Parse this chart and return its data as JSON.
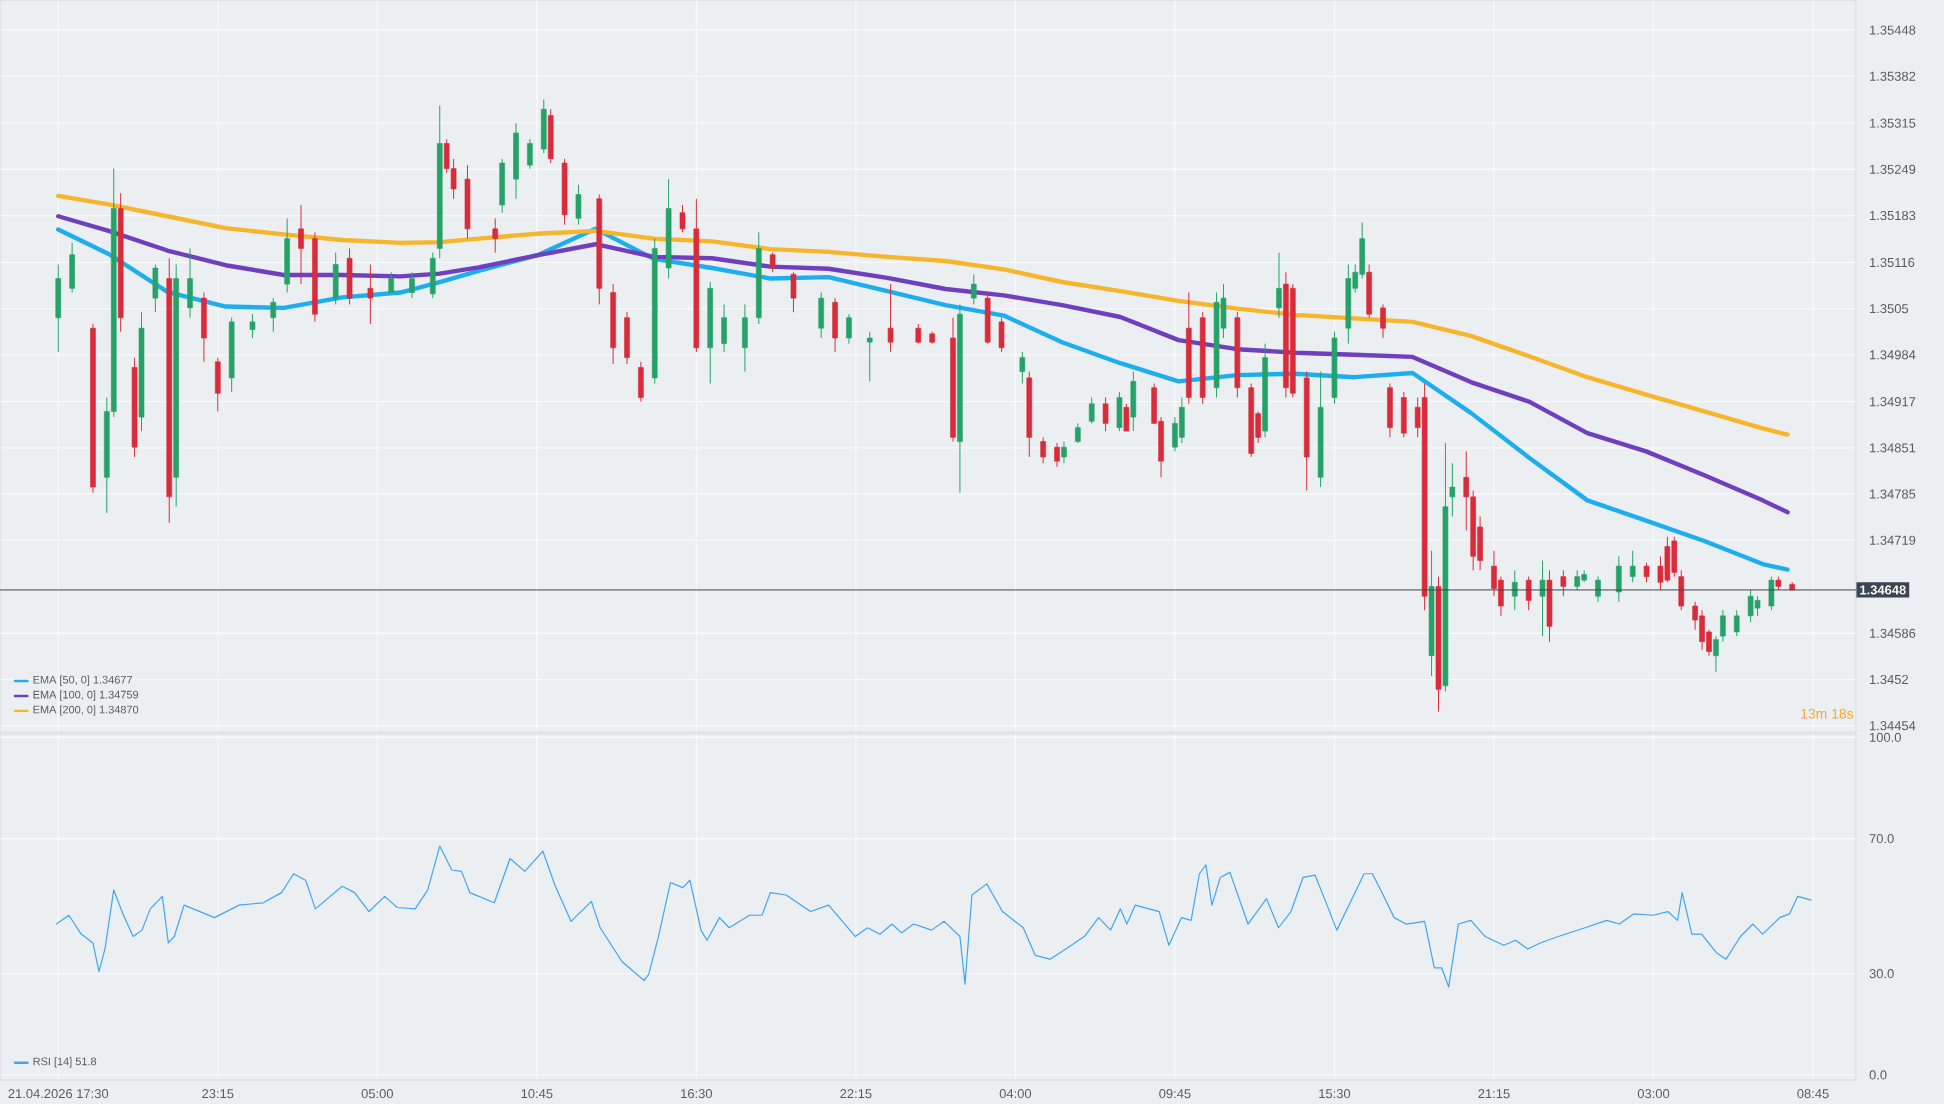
{
  "chart_data": [
    {
      "type": "candlestick",
      "xlim": [
        "2026-04-21T15:24",
        "2026-04-24T10:18"
      ],
      "ylim": [
        1.34445,
        1.35491
      ],
      "grid": true,
      "legend": "bottom left",
      "tick_labels": "y",
      "xticks": [
        {
          "value": "2026-04-21T17:30",
          "label": null
        },
        {
          "value": "2026-04-21T23:15",
          "label": null
        },
        {
          "value": "2026-04-22T05:00",
          "label": null
        },
        {
          "value": "2026-04-22T10:45",
          "label": null
        },
        {
          "value": "2026-04-22T16:30",
          "label": null
        },
        {
          "value": "2026-04-22T22:15",
          "label": null
        },
        {
          "value": "2026-04-23T04:00",
          "label": null
        },
        {
          "value": "2026-04-23T09:45",
          "label": null
        },
        {
          "value": "2026-04-23T15:30",
          "label": null
        },
        {
          "value": "2026-04-23T21:15",
          "label": null
        },
        {
          "value": "2026-04-24T03:00",
          "label": null
        },
        {
          "value": "2026-04-24T08:45",
          "label": null
        }
      ],
      "yticks": [
        1.34454,
        1.3452,
        1.34586,
        1.34719,
        1.34785,
        1.34851,
        1.34917,
        1.34984,
        1.3505,
        1.35116,
        1.35183,
        1.35249,
        1.35315,
        1.35382,
        1.35448
      ],
      "x": [
        "2026-04-21T17:30",
        "2026-04-21T18:00",
        "2026-04-21T18:45",
        "2026-04-21T19:15",
        "2026-04-21T19:30",
        "2026-04-21T19:45",
        "2026-04-21T20:15",
        "2026-04-21T20:30",
        "2026-04-21T21:00",
        "2026-04-21T21:30",
        "2026-04-21T21:45",
        "2026-04-21T22:15",
        "2026-04-21T22:45",
        "2026-04-21T23:15",
        "2026-04-21T23:45",
        "2026-04-22T00:30",
        "2026-04-22T01:15",
        "2026-04-22T01:45",
        "2026-04-22T02:15",
        "2026-04-22T02:45",
        "2026-04-22T03:30",
        "2026-04-22T04:00",
        "2026-04-22T04:45",
        "2026-04-22T05:30",
        "2026-04-22T06:15",
        "2026-04-22T07:00",
        "2026-04-22T07:15",
        "2026-04-22T07:30",
        "2026-04-22T07:45",
        "2026-04-22T08:15",
        "2026-04-22T09:15",
        "2026-04-22T09:30",
        "2026-04-22T10:00",
        "2026-04-22T10:30",
        "2026-04-22T11:00",
        "2026-04-22T11:15",
        "2026-04-22T11:45",
        "2026-04-22T12:15",
        "2026-04-22T13:00",
        "2026-04-22T13:30",
        "2026-04-22T14:00",
        "2026-04-22T14:30",
        "2026-04-22T15:00",
        "2026-04-22T15:30",
        "2026-04-22T16:00",
        "2026-04-22T16:30",
        "2026-04-22T17:00",
        "2026-04-22T17:30",
        "2026-04-22T18:15",
        "2026-04-22T18:45",
        "2026-04-22T19:15",
        "2026-04-22T20:00",
        "2026-04-22T21:00",
        "2026-04-22T21:30",
        "2026-04-22T22:00",
        "2026-04-22T22:45",
        "2026-04-22T23:30",
        "2026-04-23T00:30",
        "2026-04-23T01:00",
        "2026-04-23T01:45",
        "2026-04-23T02:00",
        "2026-04-23T02:30",
        "2026-04-23T03:00",
        "2026-04-23T03:30",
        "2026-04-23T04:15",
        "2026-04-23T04:30",
        "2026-04-23T05:00",
        "2026-04-23T05:30",
        "2026-04-23T05:45",
        "2026-04-23T06:15",
        "2026-04-23T06:45",
        "2026-04-23T07:15",
        "2026-04-23T07:45",
        "2026-04-23T08:00",
        "2026-04-23T08:15",
        "2026-04-23T09:00",
        "2026-04-23T09:15",
        "2026-04-23T09:45",
        "2026-04-23T10:00",
        "2026-04-23T10:15",
        "2026-04-23T10:45",
        "2026-04-23T11:15",
        "2026-04-23T11:30",
        "2026-04-23T12:00",
        "2026-04-23T12:30",
        "2026-04-23T12:45",
        "2026-04-23T13:00",
        "2026-04-23T13:30",
        "2026-04-23T13:45",
        "2026-04-23T14:00",
        "2026-04-23T14:30",
        "2026-04-23T15:00",
        "2026-04-23T15:30",
        "2026-04-23T16:00",
        "2026-04-23T16:15",
        "2026-04-23T16:30",
        "2026-04-23T16:45",
        "2026-04-23T17:15",
        "2026-04-23T17:30",
        "2026-04-23T18:00",
        "2026-04-23T18:30",
        "2026-04-23T18:45",
        "2026-04-23T19:00",
        "2026-04-23T19:15",
        "2026-04-23T19:30",
        "2026-04-23T19:45",
        "2026-04-23T20:15",
        "2026-04-23T20:30",
        "2026-04-23T20:45",
        "2026-04-23T21:15",
        "2026-04-23T21:30",
        "2026-04-23T22:00",
        "2026-04-23T22:30",
        "2026-04-23T23:00",
        "2026-04-23T23:15",
        "2026-04-23T23:45",
        "2026-04-24T00:15",
        "2026-04-24T00:30",
        "2026-04-24T01:00",
        "2026-04-24T01:45",
        "2026-04-24T02:15",
        "2026-04-24T02:45",
        "2026-04-24T03:15",
        "2026-04-24T03:30",
        "2026-04-24T03:45",
        "2026-04-24T04:00",
        "2026-04-24T04:30",
        "2026-04-24T04:45",
        "2026-04-24T05:00",
        "2026-04-24T05:15",
        "2026-04-24T05:30",
        "2026-04-24T06:00",
        "2026-04-24T06:30",
        "2026-04-24T06:45",
        "2026-04-24T07:15",
        "2026-04-24T07:30",
        "2026-04-24T08:00"
      ],
      "ohlc": [
        [
          1.35037,
          1.35113,
          1.34988,
          1.35093
        ],
        [
          1.35079,
          1.35144,
          1.35073,
          1.35127
        ],
        [
          1.35022,
          1.35028,
          1.34787,
          1.34795
        ],
        [
          1.34809,
          1.34923,
          1.34758,
          1.34903
        ],
        [
          1.34903,
          1.3525,
          1.34895,
          1.35193
        ],
        [
          1.35193,
          1.35215,
          1.35017,
          1.35037
        ],
        [
          1.34966,
          1.3498,
          1.34838,
          1.34852
        ],
        [
          1.34895,
          1.35045,
          1.34875,
          1.35022
        ],
        [
          1.35065,
          1.35113,
          1.35045,
          1.35108
        ],
        [
          1.35093,
          1.35122,
          1.34744,
          1.34781
        ],
        [
          1.34809,
          1.35113,
          1.34767,
          1.35093
        ],
        [
          1.35051,
          1.35136,
          1.35037,
          1.35093
        ],
        [
          1.35065,
          1.35073,
          1.34974,
          1.35008
        ],
        [
          1.34974,
          1.3498,
          1.34903,
          1.34929
        ],
        [
          1.34951,
          1.35037,
          1.34931,
          1.35031
        ],
        [
          1.3502,
          1.35042,
          1.35008,
          1.35031
        ],
        [
          1.35037,
          1.35065,
          1.35017,
          1.35059
        ],
        [
          1.35085,
          1.35179,
          1.35073,
          1.3515
        ],
        [
          1.35164,
          1.35198,
          1.35085,
          1.35136
        ],
        [
          1.3515,
          1.35159,
          1.35031,
          1.35042
        ],
        [
          1.35065,
          1.3513,
          1.35056,
          1.35113
        ],
        [
          1.35122,
          1.35136,
          1.35056,
          1.35065
        ],
        [
          1.35079,
          1.35113,
          1.35028,
          1.35065
        ],
        [
          1.35073,
          1.35102,
          1.35073,
          1.35093
        ],
        [
          1.35073,
          1.35102,
          1.35065,
          1.35093
        ],
        [
          1.35071,
          1.3513,
          1.35065,
          1.35122
        ],
        [
          1.35136,
          1.3534,
          1.35122,
          1.35286
        ],
        [
          1.35286,
          1.35292,
          1.35244,
          1.3525
        ],
        [
          1.3525,
          1.35264,
          1.35207,
          1.35221
        ],
        [
          1.35235,
          1.35255,
          1.3515,
          1.35164
        ],
        [
          1.35164,
          1.35179,
          1.3513,
          1.3515
        ],
        [
          1.35198,
          1.35264,
          1.35187,
          1.35258
        ],
        [
          1.35235,
          1.35315,
          1.35207,
          1.35301
        ],
        [
          1.35255,
          1.35292,
          1.3525,
          1.35286
        ],
        [
          1.35278,
          1.35349,
          1.35272,
          1.35335
        ],
        [
          1.35326,
          1.35335,
          1.35258,
          1.35264
        ],
        [
          1.35258,
          1.35264,
          1.3517,
          1.35184
        ],
        [
          1.35179,
          1.35227,
          1.3517,
          1.35213
        ],
        [
          1.35207,
          1.35213,
          1.35056,
          1.35079
        ],
        [
          1.35073,
          1.35085,
          1.34971,
          1.34994
        ],
        [
          1.35037,
          1.35045,
          1.34971,
          1.3498
        ],
        [
          1.34966,
          1.34974,
          1.34917,
          1.34923
        ],
        [
          1.34951,
          1.3515,
          1.34943,
          1.35136
        ],
        [
          1.35108,
          1.35235,
          1.35093,
          1.35193
        ],
        [
          1.35187,
          1.35198,
          1.35159,
          1.35164
        ],
        [
          1.35164,
          1.35207,
          1.34988,
          1.34994
        ],
        [
          1.34994,
          1.35088,
          1.34943,
          1.35079
        ],
        [
          1.35,
          1.35056,
          1.34988,
          1.35037
        ],
        [
          1.34994,
          1.35056,
          1.3496,
          1.35037
        ],
        [
          1.35037,
          1.35159,
          1.35028,
          1.35136
        ],
        [
          1.35127,
          1.3513,
          1.35102,
          1.35108
        ],
        [
          1.35099,
          1.35102,
          1.35045,
          1.35065
        ],
        [
          1.35022,
          1.35073,
          1.35008,
          1.35065
        ],
        [
          1.35059,
          1.35065,
          1.34988,
          1.35008
        ],
        [
          1.35008,
          1.35042,
          1.35,
          1.35037
        ],
        [
          1.35002,
          1.35017,
          1.34946,
          1.35008
        ],
        [
          1.35022,
          1.35085,
          1.34988,
          1.35002
        ],
        [
          1.35022,
          1.35028,
          1.35,
          1.35002
        ],
        [
          1.35014,
          1.35017,
          1.35,
          1.35002
        ],
        [
          1.35008,
          1.35037,
          1.3486,
          1.34866
        ],
        [
          1.3486,
          1.35056,
          1.34787,
          1.35042
        ],
        [
          1.35065,
          1.35099,
          1.35056,
          1.35085
        ],
        [
          1.35065,
          1.35073,
          1.35,
          1.35002
        ],
        [
          1.35031,
          1.35037,
          1.34988,
          1.34994
        ],
        [
          1.3496,
          1.34988,
          1.34943,
          1.3498
        ],
        [
          1.34951,
          1.3496,
          1.34838,
          1.34866
        ],
        [
          1.3486,
          1.34866,
          1.34829,
          1.34838
        ],
        [
          1.34852,
          1.34858,
          1.34824,
          1.34832
        ],
        [
          1.34838,
          1.3486,
          1.34829,
          1.34852
        ],
        [
          1.3486,
          1.34886,
          1.34858,
          1.3488
        ],
        [
          1.34889,
          1.34923,
          1.34886,
          1.34914
        ],
        [
          1.34914,
          1.34923,
          1.34875,
          1.34886
        ],
        [
          1.3488,
          1.34931,
          1.34875,
          1.34923
        ],
        [
          1.34909,
          1.34914,
          1.34875,
          1.34875
        ],
        [
          1.34895,
          1.3496,
          1.34875,
          1.34946
        ],
        [
          1.34937,
          1.34943,
          1.34886,
          1.34886
        ],
        [
          1.34889,
          1.34895,
          1.34809,
          1.34832
        ],
        [
          1.34852,
          1.34895,
          1.34846,
          1.34886
        ],
        [
          1.34866,
          1.34923,
          1.34858,
          1.34909
        ],
        [
          1.35022,
          1.35073,
          1.34914,
          1.34923
        ],
        [
          1.35037,
          1.35045,
          1.34914,
          1.34923
        ],
        [
          1.34937,
          1.35073,
          1.34923,
          1.35059
        ],
        [
          1.35022,
          1.35085,
          1.35008,
          1.35065
        ],
        [
          1.35037,
          1.35045,
          1.34923,
          1.34937
        ],
        [
          1.34937,
          1.34943,
          1.34838,
          1.34843
        ],
        [
          1.349,
          1.34903,
          1.34858,
          1.34866
        ],
        [
          1.34875,
          1.35,
          1.34866,
          1.3498
        ],
        [
          1.35051,
          1.3513,
          1.35037,
          1.35079
        ],
        [
          1.35085,
          1.35102,
          1.34923,
          1.34937
        ],
        [
          1.35079,
          1.35085,
          1.34923,
          1.34929
        ],
        [
          1.34951,
          1.3496,
          1.3479,
          1.34838
        ],
        [
          1.34809,
          1.3496,
          1.34795,
          1.34909
        ],
        [
          1.34923,
          1.35017,
          1.34914,
          1.35008
        ],
        [
          1.35022,
          1.35113,
          1.35,
          1.35093
        ],
        [
          1.35079,
          1.35113,
          1.35073,
          1.35102
        ],
        [
          1.35099,
          1.35173,
          1.35093,
          1.3515
        ],
        [
          1.35102,
          1.35113,
          1.35037,
          1.35042
        ],
        [
          1.35051,
          1.35056,
          1.35008,
          1.35022
        ],
        [
          1.34937,
          1.34943,
          1.34866,
          1.3488
        ],
        [
          1.34923,
          1.34931,
          1.34866,
          1.34872
        ],
        [
          1.34909,
          1.34923,
          1.34866,
          1.3488
        ],
        [
          1.34923,
          1.34943,
          1.34619,
          1.34639
        ],
        [
          1.34554,
          1.34704,
          1.34525,
          1.34653
        ],
        [
          1.34653,
          1.34667,
          1.34474,
          1.34506
        ],
        [
          1.34511,
          1.34858,
          1.34503,
          1.34767
        ],
        [
          1.34781,
          1.34829,
          1.34753,
          1.34795
        ],
        [
          1.34809,
          1.34846,
          1.34733,
          1.34781
        ],
        [
          1.34781,
          1.3479,
          1.34676,
          1.34696
        ],
        [
          1.34738,
          1.34753,
          1.34676,
          1.3469
        ],
        [
          1.34682,
          1.34704,
          1.34639,
          1.3465
        ],
        [
          1.34662,
          1.34667,
          1.34611,
          1.34625
        ],
        [
          1.34639,
          1.34676,
          1.34619,
          1.34659
        ],
        [
          1.34662,
          1.34667,
          1.34619,
          1.34633
        ],
        [
          1.34639,
          1.3469,
          1.34582,
          1.34662
        ],
        [
          1.34662,
          1.34676,
          1.34574,
          1.34596
        ],
        [
          1.34667,
          1.34676,
          1.34639,
          1.34653
        ],
        [
          1.34653,
          1.34676,
          1.34648,
          1.34667
        ],
        [
          1.34662,
          1.34676,
          1.34659,
          1.3467
        ],
        [
          1.34639,
          1.34667,
          1.34631,
          1.34662
        ],
        [
          1.34645,
          1.34696,
          1.34631,
          1.34682
        ],
        [
          1.34667,
          1.34704,
          1.34659,
          1.34682
        ],
        [
          1.34682,
          1.34687,
          1.34659,
          1.34667
        ],
        [
          1.34682,
          1.34696,
          1.34648,
          1.34659
        ],
        [
          1.3471,
          1.34724,
          1.34659,
          1.34662
        ],
        [
          1.34718,
          1.34724,
          1.34667,
          1.34673
        ],
        [
          1.34667,
          1.34676,
          1.34619,
          1.34625
        ],
        [
          1.34625,
          1.34631,
          1.34591,
          1.34605
        ],
        [
          1.34611,
          1.34619,
          1.34562,
          1.34574
        ],
        [
          1.34588,
          1.34591,
          1.34554,
          1.3456
        ],
        [
          1.34554,
          1.34582,
          1.34531,
          1.34577
        ],
        [
          1.34582,
          1.34619,
          1.34574,
          1.34611
        ],
        [
          1.34588,
          1.34619,
          1.34582,
          1.34611
        ],
        [
          1.34611,
          1.34648,
          1.34602,
          1.34639
        ],
        [
          1.34622,
          1.34639,
          1.34611,
          1.34633
        ],
        [
          1.34625,
          1.34667,
          1.34619,
          1.34662
        ],
        [
          1.34662,
          1.34667,
          1.34648,
          1.34653
        ],
        [
          1.34656,
          1.34659,
          1.34648,
          1.34648
        ]
      ],
      "series": [
        {
          "type": "line",
          "name": "EMA [50, 0] 1.34677",
          "color": "#1eaef0",
          "x": [
            "2026-04-21T17:30",
            "2026-04-21T19:19",
            "2026-04-21T21:26",
            "2026-04-21T23:32",
            "2026-04-22T01:38",
            "2026-04-22T03:44",
            "2026-04-22T05:50",
            "2026-04-22T07:15",
            "2026-04-22T08:39",
            "2026-04-22T10:45",
            "2026-04-22T12:52",
            "2026-04-22T14:58",
            "2026-04-22T17:04",
            "2026-04-22T19:10",
            "2026-04-22T21:16",
            "2026-04-22T23:23",
            "2026-04-23T01:29",
            "2026-04-23T03:35",
            "2026-04-23T05:41",
            "2026-04-23T07:47",
            "2026-04-23T09:53",
            "2026-04-23T12:00",
            "2026-04-23T14:06",
            "2026-04-23T16:13",
            "2026-04-23T18:19",
            "2026-04-23T20:25",
            "2026-04-23T22:31",
            "2026-04-24T00:37",
            "2026-04-24T02:44",
            "2026-04-24T04:50",
            "2026-04-24T06:56",
            "2026-04-24T07:50"
          ],
          "values": [
            1.35163,
            1.35128,
            1.35074,
            1.35053,
            1.35051,
            1.35066,
            1.35073,
            1.35088,
            1.35104,
            1.35126,
            1.35164,
            1.35121,
            1.35108,
            1.35093,
            1.35095,
            1.35075,
            1.35055,
            1.3504,
            1.35002,
            1.34972,
            1.34946,
            1.34955,
            1.34957,
            1.34952,
            1.34958,
            1.34901,
            1.34837,
            1.34776,
            1.34747,
            1.34718,
            1.34685,
            1.34677
          ]
        },
        {
          "type": "line",
          "name": "EMA [100, 0] 1.34759",
          "color": "#6f3fbf",
          "x": [
            "2026-04-21T17:30",
            "2026-04-21T19:19",
            "2026-04-21T21:26",
            "2026-04-21T23:32",
            "2026-04-22T01:38",
            "2026-04-22T03:44",
            "2026-04-22T05:50",
            "2026-04-22T07:15",
            "2026-04-22T08:39",
            "2026-04-22T10:45",
            "2026-04-22T12:52",
            "2026-04-22T14:58",
            "2026-04-22T17:04",
            "2026-04-22T19:10",
            "2026-04-22T21:16",
            "2026-04-22T23:23",
            "2026-04-23T01:29",
            "2026-04-23T03:35",
            "2026-04-23T05:41",
            "2026-04-23T07:47",
            "2026-04-23T09:53",
            "2026-04-23T12:00",
            "2026-04-23T14:06",
            "2026-04-23T16:13",
            "2026-04-23T18:19",
            "2026-04-23T20:25",
            "2026-04-23T22:31",
            "2026-04-24T00:37",
            "2026-04-24T02:44",
            "2026-04-24T04:50",
            "2026-04-24T06:56",
            "2026-04-24T07:50"
          ],
          "values": [
            1.35182,
            1.35161,
            1.35133,
            1.35112,
            1.35098,
            1.35098,
            1.35096,
            1.351,
            1.35109,
            1.35126,
            1.35142,
            1.35124,
            1.35122,
            1.3511,
            1.35107,
            1.35094,
            1.35078,
            1.35069,
            1.35055,
            1.35038,
            1.35005,
            1.34992,
            1.34987,
            1.34984,
            1.34981,
            1.34945,
            1.34917,
            1.34872,
            1.34846,
            1.34812,
            1.34776,
            1.34759
          ]
        },
        {
          "type": "line",
          "name": "EMA [200, 0] 1.34870",
          "color": "#f7b52c",
          "x": [
            "2026-04-21T17:30",
            "2026-04-21T19:19",
            "2026-04-21T21:26",
            "2026-04-21T23:32",
            "2026-04-22T01:38",
            "2026-04-22T03:44",
            "2026-04-22T05:50",
            "2026-04-22T07:15",
            "2026-04-22T08:39",
            "2026-04-22T10:45",
            "2026-04-22T12:52",
            "2026-04-22T14:58",
            "2026-04-22T17:04",
            "2026-04-22T19:10",
            "2026-04-22T21:16",
            "2026-04-22T23:23",
            "2026-04-23T01:29",
            "2026-04-23T03:35",
            "2026-04-23T05:41",
            "2026-04-23T07:47",
            "2026-04-23T09:53",
            "2026-04-23T12:00",
            "2026-04-23T14:06",
            "2026-04-23T16:13",
            "2026-04-23T18:19",
            "2026-04-23T20:25",
            "2026-04-23T22:31",
            "2026-04-24T00:37",
            "2026-04-24T02:44",
            "2026-04-24T04:50",
            "2026-04-24T06:56",
            "2026-04-24T07:50"
          ],
          "values": [
            1.35211,
            1.35199,
            1.35182,
            1.35165,
            1.35156,
            1.35148,
            1.35144,
            1.35145,
            1.3515,
            1.35157,
            1.35161,
            1.3515,
            1.35146,
            1.35135,
            1.35131,
            1.35124,
            1.35118,
            1.35106,
            1.35088,
            1.35075,
            1.35061,
            1.3505,
            1.35041,
            1.35036,
            1.35031,
            1.35011,
            1.34982,
            1.34952,
            1.34927,
            1.34903,
            1.34879,
            1.3487
          ]
        }
      ],
      "ref_lines": [
        {
          "axis": "y",
          "value": 1.34648,
          "label": "1.34648",
          "color": "#3b4652"
        }
      ],
      "annotations": [
        "13m 18s"
      ]
    },
    {
      "type": "line",
      "xlim": [
        "2026-04-21T15:24",
        "2026-04-24T10:18"
      ],
      "ylim": [
        -1.5,
        101
      ],
      "grid": true,
      "legend": "bottom left",
      "xticks": [
        {
          "value": "2026-04-21T17:30",
          "label": "21.04.2026 17:30"
        },
        {
          "value": "2026-04-21T23:15",
          "label": "23:15"
        },
        {
          "value": "2026-04-22T05:00",
          "label": "05:00"
        },
        {
          "value": "2026-04-22T10:45",
          "label": "10:45"
        },
        {
          "value": "2026-04-22T16:30",
          "label": "16:30"
        },
        {
          "value": "2026-04-22T22:15",
          "label": "22:15"
        },
        {
          "value": "2026-04-23T04:00",
          "label": "04:00"
        },
        {
          "value": "2026-04-23T09:45",
          "label": "09:45"
        },
        {
          "value": "2026-04-23T15:30",
          "label": "15:30"
        },
        {
          "value": "2026-04-23T21:15",
          "label": "21:15"
        },
        {
          "value": "2026-04-24T03:00",
          "label": "03:00"
        },
        {
          "value": "2026-04-24T08:45",
          "label": "08:45"
        }
      ],
      "yticks": [
        {
          "value": 0,
          "label": "0.0"
        },
        {
          "value": 30,
          "label": "30.0"
        },
        {
          "value": 70,
          "label": "70.0"
        },
        {
          "value": 100,
          "label": "100.0"
        }
      ],
      "series": [
        {
          "name": "RSI [14] 51.8",
          "color": "#3ea6f2",
          "x": [
            "2026-04-21T17:26",
            "2026-04-21T17:53",
            "2026-04-21T18:19",
            "2026-04-21T18:45",
            "2026-04-21T18:58",
            "2026-04-21T19:11",
            "2026-04-21T19:30",
            "2026-04-21T19:51",
            "2026-04-21T20:12",
            "2026-04-21T20:31",
            "2026-04-21T20:49",
            "2026-04-21T21:15",
            "2026-04-21T21:28",
            "2026-04-21T21:41",
            "2026-04-21T22:02",
            "2026-04-21T23:08",
            "2026-04-22T00:01",
            "2026-04-22T00:53",
            "2026-04-22T01:33",
            "2026-04-22T01:59",
            "2026-04-22T02:25",
            "2026-04-22T02:46",
            "2026-04-22T03:44",
            "2026-04-22T04:11",
            "2026-04-22T04:42",
            "2026-04-22T05:16",
            "2026-04-22T05:43",
            "2026-04-22T06:22",
            "2026-04-22T06:49",
            "2026-04-22T07:15",
            "2026-04-22T07:41",
            "2026-04-22T08:02",
            "2026-04-22T08:20",
            "2026-04-22T09:13",
            "2026-04-22T09:47",
            "2026-04-22T10:19",
            "2026-04-22T10:58",
            "2026-04-22T11:25",
            "2026-04-22T11:59",
            "2026-04-22T12:43",
            "2026-04-22T13:02",
            "2026-04-22T13:49",
            "2026-04-22T14:37",
            "2026-04-22T14:47",
            "2026-04-22T15:08",
            "2026-04-22T15:34",
            "2026-04-22T16:01",
            "2026-04-22T16:16",
            "2026-04-22T16:40",
            "2026-04-22T16:53",
            "2026-04-22T17:20",
            "2026-04-22T17:41",
            "2026-04-22T18:25",
            "2026-04-22T18:52",
            "2026-04-22T19:10",
            "2026-04-22T19:44",
            "2026-04-22T20:37",
            "2026-04-22T21:16",
            "2026-04-22T22:14",
            "2026-04-22T22:40",
            "2026-04-22T23:07",
            "2026-04-22T23:33",
            "2026-04-22T23:54",
            "2026-04-23T00:20",
            "2026-04-23T00:59",
            "2026-04-23T01:26",
            "2026-04-23T02:00",
            "2026-04-23T02:11",
            "2026-04-23T02:26",
            "2026-04-23T02:58",
            "2026-04-23T03:32",
            "2026-04-23T04:17",
            "2026-04-23T04:43",
            "2026-04-23T05:15",
            "2026-04-23T05:49",
            "2026-04-23T06:29",
            "2026-04-23T07:00",
            "2026-04-23T07:26",
            "2026-04-23T07:47",
            "2026-04-23T08:01",
            "2026-04-23T08:19",
            "2026-04-23T09:11",
            "2026-04-23T09:32",
            "2026-04-23T09:59",
            "2026-04-23T10:20",
            "2026-04-23T10:38",
            "2026-04-23T10:52",
            "2026-04-23T11:05",
            "2026-04-23T11:23",
            "2026-04-23T11:44",
            "2026-04-23T12:23",
            "2026-04-23T13:03",
            "2026-04-23T13:29",
            "2026-04-23T13:56",
            "2026-04-23T14:22",
            "2026-04-23T14:48",
            "2026-04-23T15:14",
            "2026-04-23T15:35",
            "2026-04-23T16:12",
            "2026-04-23T16:34",
            "2026-04-23T16:52",
            "2026-04-23T17:13",
            "2026-04-23T17:39",
            "2026-04-23T18:05",
            "2026-04-23T18:45",
            "2026-04-23T19:06",
            "2026-04-23T19:22",
            "2026-04-23T19:37",
            "2026-04-23T19:58",
            "2026-04-23T20:25",
            "2026-04-23T20:56",
            "2026-04-23T21:36",
            "2026-04-23T22:02",
            "2026-04-23T22:28",
            "2026-04-23T22:55",
            "2026-04-23T23:34",
            "2026-04-24T00:32",
            "2026-04-24T01:19",
            "2026-04-24T01:46",
            "2026-04-24T02:17",
            "2026-04-24T02:59",
            "2026-04-24T03:31",
            "2026-04-24T03:52",
            "2026-04-24T04:02",
            "2026-04-24T04:23",
            "2026-04-24T04:44",
            "2026-04-24T05:16",
            "2026-04-24T05:37",
            "2026-04-24T06:08",
            "2026-04-24T06:35",
            "2026-04-24T06:56",
            "2026-04-24T07:33",
            "2026-04-24T07:54",
            "2026-04-24T08:12",
            "2026-04-24T08:41"
          ],
          "values": [
            44.7,
            47.3,
            41.8,
            39.1,
            30.6,
            37.3,
            54.8,
            47.3,
            41.0,
            42.9,
            49.2,
            52.9,
            39.1,
            41.0,
            50.3,
            46.6,
            50.3,
            51.0,
            54.0,
            59.6,
            57.7,
            49.2,
            55.9,
            54.0,
            48.4,
            52.9,
            49.6,
            49.2,
            54.8,
            67.8,
            60.7,
            60.3,
            54.0,
            51.0,
            64.1,
            60.3,
            66.3,
            55.9,
            45.5,
            51.4,
            43.6,
            33.6,
            28.0,
            29.8,
            41.0,
            57.0,
            55.5,
            57.7,
            42.9,
            39.9,
            46.6,
            43.6,
            47.3,
            47.3,
            54.0,
            53.3,
            48.4,
            50.3,
            41.0,
            43.6,
            41.7,
            44.7,
            42.1,
            44.7,
            42.9,
            45.5,
            41.0,
            26.9,
            53.3,
            56.6,
            48.4,
            43.6,
            35.4,
            34.3,
            37.3,
            41.0,
            46.6,
            42.9,
            49.2,
            44.7,
            50.3,
            48.4,
            38.4,
            46.6,
            45.8,
            59.6,
            62.2,
            50.3,
            58.5,
            60.0,
            44.7,
            52.2,
            43.6,
            48.4,
            58.5,
            59.2,
            50.3,
            42.9,
            53.3,
            59.6,
            59.6,
            54.0,
            46.6,
            44.7,
            45.5,
            31.7,
            31.7,
            26.1,
            44.7,
            45.8,
            41.0,
            38.4,
            39.9,
            37.3,
            39.1,
            41.0,
            43.6,
            45.8,
            44.7,
            47.7,
            47.3,
            48.4,
            45.8,
            54.0,
            41.7,
            41.7,
            36.2,
            34.3,
            41.0,
            44.7,
            41.7,
            46.6,
            47.7,
            52.9,
            51.8
          ]
        }
      ]
    }
  ]
}
